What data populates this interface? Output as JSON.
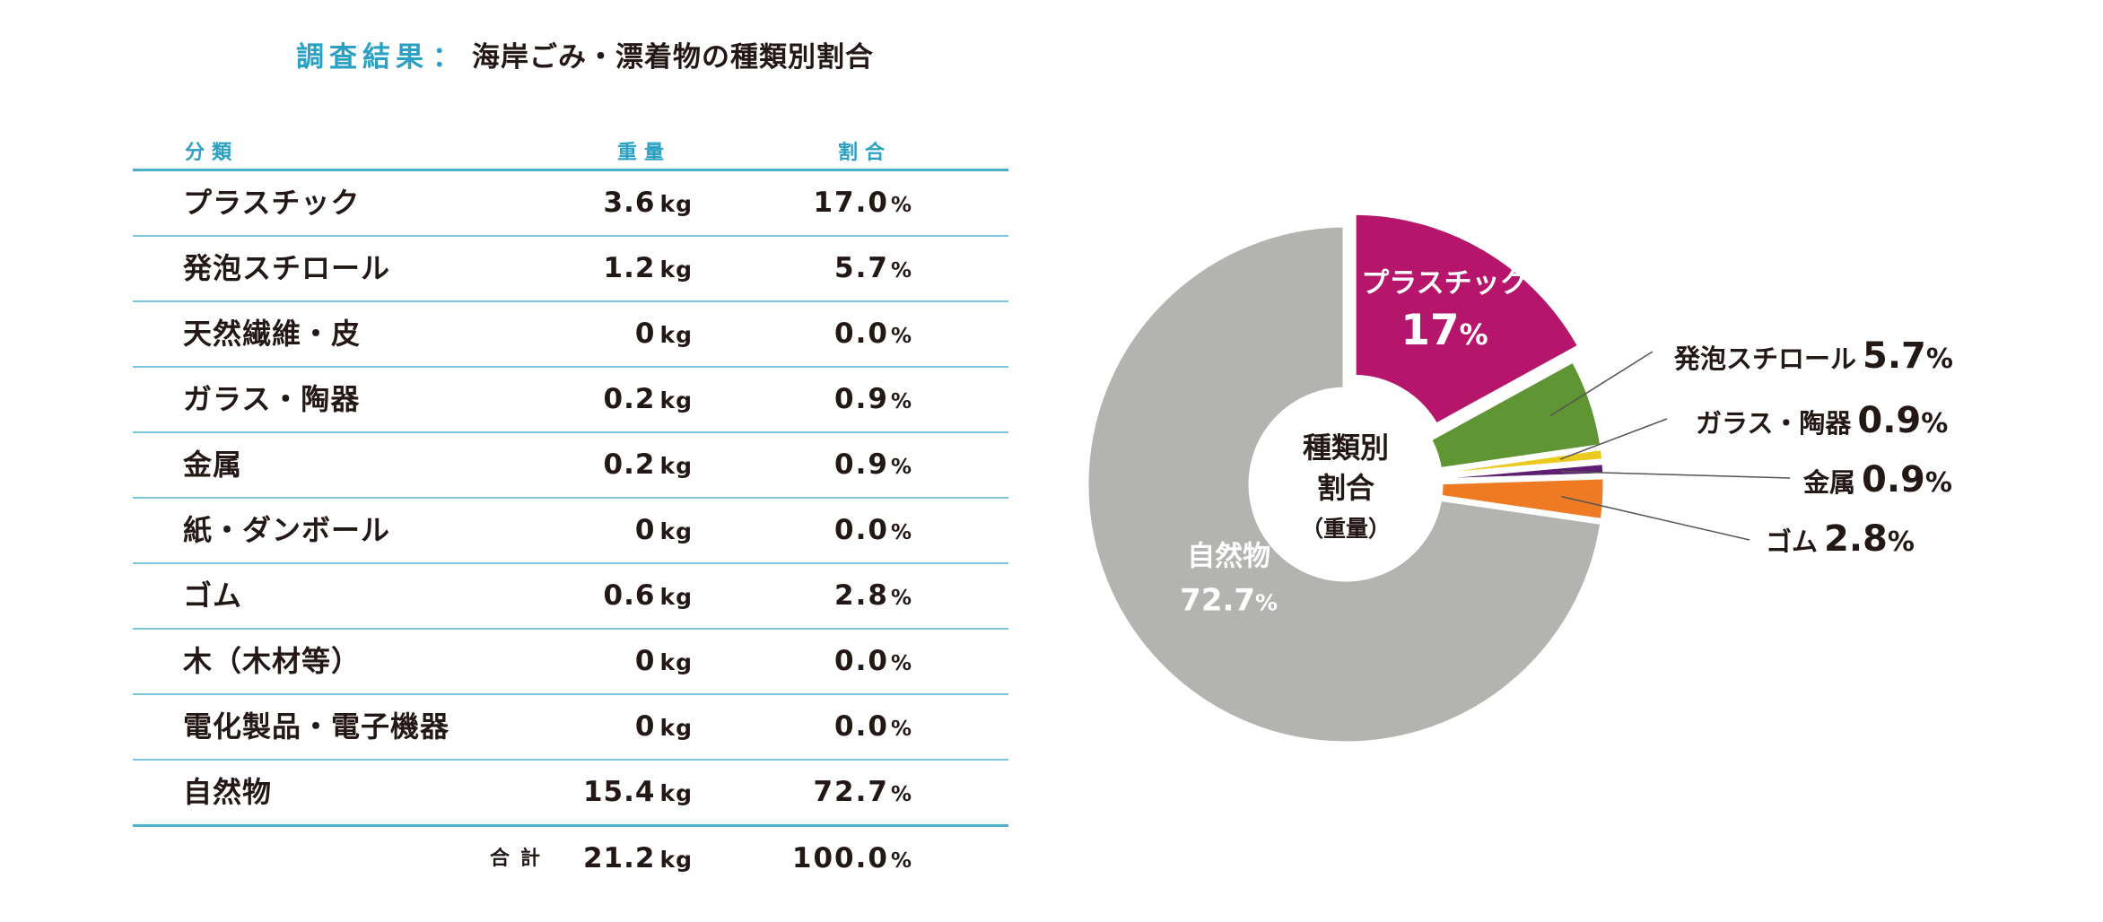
{
  "title": {
    "prefix": "調査結果",
    "separator": "：",
    "main": "海岸ごみ・漂着物の種類別割合"
  },
  "table": {
    "headers": {
      "category": "分類",
      "weight": "重量",
      "share": "割合"
    },
    "rows": [
      {
        "name": "プラスチック",
        "weight": "3.6",
        "weight_unit": "kg",
        "share": "17.0",
        "share_unit": "%"
      },
      {
        "name": "発泡スチロール",
        "weight": "1.2",
        "weight_unit": "kg",
        "share": "5.7",
        "share_unit": "%"
      },
      {
        "name": "天然繊維・皮",
        "weight": "0",
        "weight_unit": "kg",
        "share": "0.0",
        "share_unit": "%"
      },
      {
        "name": "ガラス・陶器",
        "weight": "0.2",
        "weight_unit": "kg",
        "share": "0.9",
        "share_unit": "%"
      },
      {
        "name": "金属",
        "weight": "0.2",
        "weight_unit": "kg",
        "share": "0.9",
        "share_unit": "%"
      },
      {
        "name": "紙・ダンボール",
        "weight": "0",
        "weight_unit": "kg",
        "share": "0.0",
        "share_unit": "%"
      },
      {
        "name": "ゴム",
        "weight": "0.6",
        "weight_unit": "kg",
        "share": "2.8",
        "share_unit": "%"
      },
      {
        "name": "木（木材等）",
        "weight": "0",
        "weight_unit": "kg",
        "share": "0.0",
        "share_unit": "%"
      },
      {
        "name": "電化製品・電子機器",
        "weight": "0",
        "weight_unit": "kg",
        "share": "0.0",
        "share_unit": "%"
      },
      {
        "name": "自然物",
        "weight": "15.4",
        "weight_unit": "kg",
        "share": "72.7",
        "share_unit": "%"
      }
    ],
    "total": {
      "label": "合計",
      "weight": "21.2",
      "weight_unit": "kg",
      "share": "100.0",
      "share_unit": "%"
    }
  },
  "chart_data": {
    "type": "pie",
    "donut": true,
    "center_label": {
      "line1": "種類別",
      "line2": "割合",
      "line3": "（重量）"
    },
    "slices": [
      {
        "label": "プラスチック",
        "value": 17.0,
        "display": "17",
        "unit": "%",
        "color": "#b5156a",
        "label_placement": "inside",
        "exploded": true
      },
      {
        "label": "発泡スチロール",
        "value": 5.7,
        "display": "5.7",
        "unit": "%",
        "color": "#5f9532",
        "label_placement": "outside"
      },
      {
        "label": "ガラス・陶器",
        "value": 0.9,
        "display": "0.9",
        "unit": "%",
        "color": "#ecc91e",
        "label_placement": "outside"
      },
      {
        "label": "金属",
        "value": 0.9,
        "display": "0.9",
        "unit": "%",
        "color": "#5e1f73",
        "label_placement": "outside"
      },
      {
        "label": "ゴム",
        "value": 2.8,
        "display": "2.8",
        "unit": "%",
        "color": "#ee7b24",
        "label_placement": "outside"
      },
      {
        "label": "自然物",
        "value": 72.7,
        "display": "72.7",
        "unit": "%",
        "color": "#b3b3b0",
        "label_placement": "inside"
      }
    ]
  }
}
